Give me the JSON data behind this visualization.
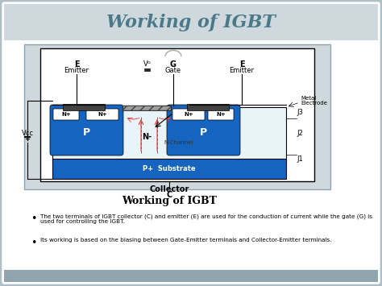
{
  "title": "Working of IGBT",
  "subtitle": "Working of IGBT",
  "collector_label": "Collector\nC",
  "bg_color": "#b0bec5",
  "slide_bg": "#eceff1",
  "diagram_bg": "#ffffff",
  "title_color": "#4a7a8a",
  "bullet1": "The two terminals of IGBT collector (C) and emitter (E) are used for the conduction of current while the gate (G) is used for controlling the IGBT.",
  "bullet2": "Its working is based on the biasing between Gate-Emitter terminals and Collector-Emitter terminals.",
  "blue_color": "#1565c0",
  "light_blue": "#42a5f5",
  "dark_blue": "#0d47a1",
  "n_region_color": "#e3f2fd",
  "p_substrate_color": "#1976d2",
  "gray_electrode": "#616161",
  "gate_color": "#9e9e9e",
  "j_label_color": "#000000",
  "vcc_color": "#000000",
  "red_arrow_color": "#e53935",
  "black_text": "#000000",
  "white_text": "#ffffff"
}
